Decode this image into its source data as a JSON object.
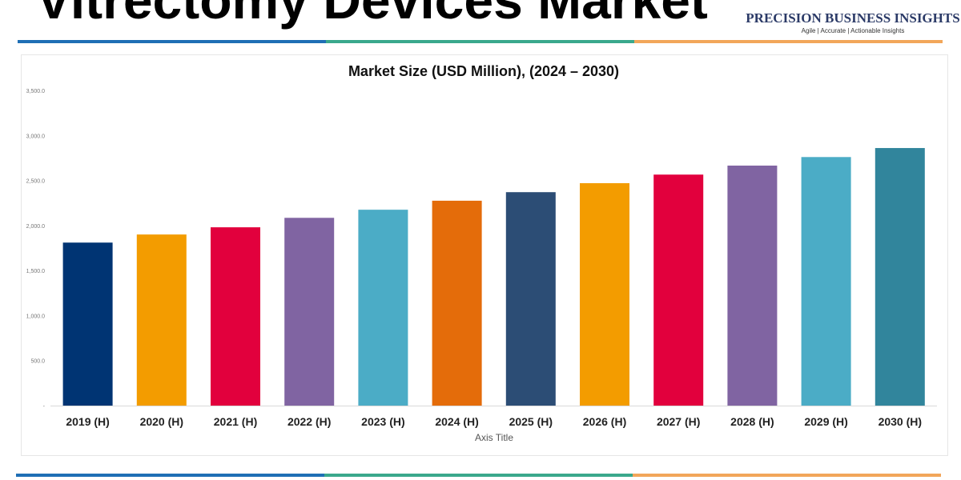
{
  "header": {
    "title": "Vitrectomy Devices Market",
    "logo_name": "PRECISION BUSINESS INSIGHTS",
    "logo_tagline": "Agile | Accurate | Actionable Insights"
  },
  "colors": {
    "stripe_left": "#1f6fb5",
    "stripe_mid": "#3aa88c",
    "stripe_right": "#f2a65a"
  },
  "chart_data": {
    "type": "bar",
    "title": "Market Size (USD Million), (2024 – 2030)",
    "xlabel": "Axis Title",
    "ylabel": "",
    "ylim": [
      0,
      3500
    ],
    "yticks": [
      0,
      500,
      1000,
      1500,
      2000,
      2500,
      3000,
      3500
    ],
    "ytick_labels": [
      "-",
      "500.0",
      "1,000.0",
      "1,500.0",
      "2,000.0",
      "2,500.0",
      "3,000.0",
      "3,500.0"
    ],
    "grid": false,
    "categories": [
      "2019 (H)",
      "2020 (H)",
      "2021 (H)",
      "2022 (H)",
      "2023 (H)",
      "2024 (H)",
      "2025 (H)",
      "2026 (H)",
      "2027 (H)",
      "2028 (H)",
      "2029 (H)",
      "2030 (H)"
    ],
    "values": [
      1810,
      1900,
      1980,
      2085,
      2175,
      2275,
      2370,
      2470,
      2565,
      2665,
      2760,
      2860
    ],
    "bar_colors": [
      "#003473",
      "#f39c00",
      "#e2003d",
      "#8064a2",
      "#4bacc6",
      "#e46c0a",
      "#2c4d75",
      "#f39c00",
      "#e2003d",
      "#8064a2",
      "#4bacc6",
      "#31859c"
    ]
  }
}
